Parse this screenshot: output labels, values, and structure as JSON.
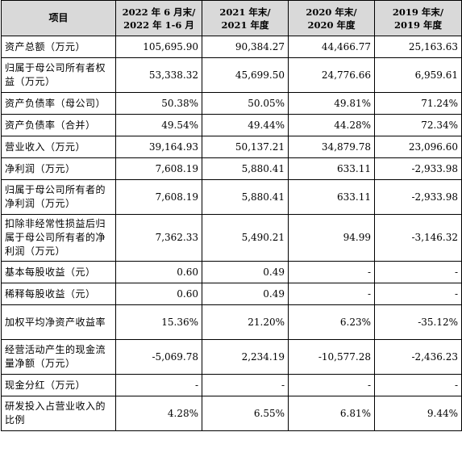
{
  "header": {
    "item": "项目",
    "columns": [
      [
        "2022 年 6 月末/",
        "2022 年 1-6 月"
      ],
      [
        "2021 年末/",
        "2021 年度"
      ],
      [
        "2020 年末/",
        "2020 年度"
      ],
      [
        "2019 年末/",
        "2019 年度"
      ]
    ]
  },
  "rows": [
    {
      "label": "资产总额（万元）",
      "values": [
        "105,695.90",
        "90,384.27",
        "44,466.77",
        "25,163.63"
      ]
    },
    {
      "label": "归属于母公司所有者权益（万元）",
      "values": [
        "53,338.32",
        "45,699.50",
        "24,776.66",
        "6,959.61"
      ]
    },
    {
      "label": "资产负债率（母公司）",
      "values": [
        "50.38%",
        "50.05%",
        "49.81%",
        "71.24%"
      ]
    },
    {
      "label": "资产负债率（合并）",
      "values": [
        "49.54%",
        "49.44%",
        "44.28%",
        "72.34%"
      ]
    },
    {
      "label": "营业收入（万元）",
      "values": [
        "39,164.93",
        "50,137.21",
        "34,879.78",
        "23,096.60"
      ]
    },
    {
      "label": "净利润（万元）",
      "values": [
        "7,608.19",
        "5,880.41",
        "633.11",
        "-2,933.98"
      ]
    },
    {
      "label": "归属于母公司所有者的净利润（万元）",
      "values": [
        "7,608.19",
        "5,880.41",
        "633.11",
        "-2,933.98"
      ]
    },
    {
      "label": "扣除非经常性损益后归属于母公司所有者的净利润（万元）",
      "values": [
        "7,362.33",
        "5,490.21",
        "94.99",
        "-3,146.32"
      ]
    },
    {
      "label": "基本每股收益（元）",
      "values": [
        "0.60",
        "0.49",
        "-",
        "-"
      ]
    },
    {
      "label": "稀释每股收益（元）",
      "values": [
        "0.60",
        "0.49",
        "-",
        "-"
      ]
    },
    {
      "label": "加权平均净资产收益率",
      "values": [
        "15.36%",
        "21.20%",
        "6.23%",
        "-35.12%"
      ]
    },
    {
      "label": "经营活动产生的现金流量净额（万元）",
      "values": [
        "-5,069.78",
        "2,234.19",
        "-10,577.28",
        "-2,436.23"
      ]
    },
    {
      "label": "现金分红（万元）",
      "values": [
        "-",
        "-",
        "-",
        "-"
      ]
    },
    {
      "label": "研发投入占营业收入的比例",
      "values": [
        "4.28%",
        "6.55%",
        "6.81%",
        "9.44%"
      ]
    }
  ]
}
